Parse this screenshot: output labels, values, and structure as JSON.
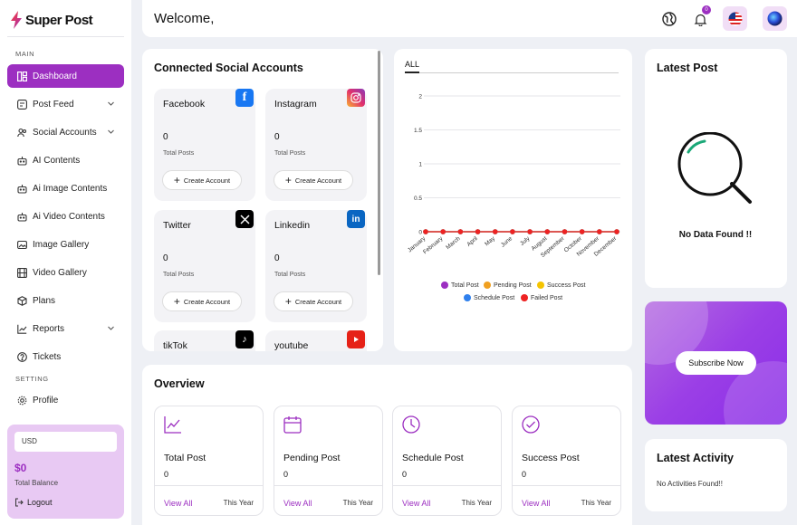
{
  "app": {
    "name": "Super Post"
  },
  "sidebar": {
    "section_main": "MAIN",
    "section_setting": "SETTING",
    "items": [
      {
        "label": "Dashboard",
        "icon": "grid-icon",
        "active": true
      },
      {
        "label": "Post Feed",
        "icon": "feed-icon",
        "chevron": true
      },
      {
        "label": "Social Accounts",
        "icon": "users-icon",
        "chevron": true
      },
      {
        "label": "AI Contents",
        "icon": "robot-icon"
      },
      {
        "label": "Ai Image Contents",
        "icon": "robot-icon"
      },
      {
        "label": "Ai Video Contents",
        "icon": "robot-icon"
      },
      {
        "label": "Image Gallery",
        "icon": "image-icon"
      },
      {
        "label": "Video Gallery",
        "icon": "film-icon"
      },
      {
        "label": "Plans",
        "icon": "cube-icon"
      },
      {
        "label": "Reports",
        "icon": "chart-icon",
        "chevron": true
      },
      {
        "label": "Tickets",
        "icon": "help-icon"
      }
    ],
    "setting_items": [
      {
        "label": "Profile",
        "icon": "gear-icon"
      }
    ],
    "balance": {
      "currency": "USD",
      "amount": "$0",
      "label": "Total Balance",
      "logout": "Logout"
    }
  },
  "header": {
    "welcome": "Welcome,",
    "notification_count": "0"
  },
  "connected": {
    "title": "Connected Social Accounts",
    "accounts": [
      {
        "name": "Facebook",
        "count": "0",
        "sub": "Total Posts",
        "button": "Create Account",
        "color": "#1877f2",
        "icon": "facebook-icon",
        "glyph": "f"
      },
      {
        "name": "Instagram",
        "count": "0",
        "sub": "Total Posts",
        "button": "Create Account",
        "color": "#e1306c",
        "icon": "instagram-icon",
        "glyph": "◎"
      },
      {
        "name": "Twitter",
        "count": "0",
        "sub": "Total Posts",
        "button": "Create Account",
        "color": "#000000",
        "icon": "x-icon",
        "glyph": "𝕏"
      },
      {
        "name": "Linkedin",
        "count": "0",
        "sub": "Total Posts",
        "button": "Create Account",
        "color": "#0a66c2",
        "icon": "linkedin-icon",
        "glyph": "in"
      },
      {
        "name": "tikTok",
        "color": "#000000",
        "icon": "tiktok-icon",
        "glyph": "♪"
      },
      {
        "name": "youtube",
        "color": "#e62117",
        "icon": "youtube-icon",
        "glyph": "▶"
      }
    ]
  },
  "chart_panel": {
    "tab": "ALL"
  },
  "chart_data": {
    "type": "line",
    "categories": [
      "January",
      "February",
      "March",
      "April",
      "May",
      "June",
      "July",
      "August",
      "September",
      "October",
      "November",
      "December"
    ],
    "yticks": [
      "2",
      "1.5",
      "1",
      "0.5",
      "0"
    ],
    "ylim": [
      0,
      2
    ],
    "series": [
      {
        "name": "Total Post",
        "color": "#9c2fc1",
        "values": [
          0,
          0,
          0,
          0,
          0,
          0,
          0,
          0,
          0,
          0,
          0,
          0
        ]
      },
      {
        "name": "Pending Post",
        "color": "#f0a020",
        "values": [
          0,
          0,
          0,
          0,
          0,
          0,
          0,
          0,
          0,
          0,
          0,
          0
        ]
      },
      {
        "name": "Success Post",
        "color": "#f5c400",
        "values": [
          0,
          0,
          0,
          0,
          0,
          0,
          0,
          0,
          0,
          0,
          0,
          0
        ]
      },
      {
        "name": "Schedule Post",
        "color": "#2f80ed",
        "values": [
          0,
          0,
          0,
          0,
          0,
          0,
          0,
          0,
          0,
          0,
          0,
          0
        ]
      },
      {
        "name": "Failed Post",
        "color": "#ee2222",
        "values": [
          0,
          0,
          0,
          0,
          0,
          0,
          0,
          0,
          0,
          0,
          0,
          0
        ]
      }
    ],
    "legend": "bottom"
  },
  "latest_post": {
    "title": "Latest Post",
    "empty": "No Data Found !!"
  },
  "subscribe": {
    "button": "Subscribe Now"
  },
  "latest_activity": {
    "title": "Latest Activity",
    "empty": "No Activities Found!!"
  },
  "overview": {
    "title": "Overview",
    "cards": [
      {
        "title": "Total Post",
        "count": "0",
        "link": "View All",
        "period": "This Year",
        "icon": "trend-icon"
      },
      {
        "title": "Pending Post",
        "count": "0",
        "link": "View All",
        "period": "This Year",
        "icon": "calendar-icon"
      },
      {
        "title": "Schedule Post",
        "count": "0",
        "link": "View All",
        "period": "This Year",
        "icon": "clock-icon"
      },
      {
        "title": "Success Post",
        "count": "0",
        "link": "View All",
        "period": "This Year",
        "icon": "check-circle-icon"
      }
    ]
  }
}
